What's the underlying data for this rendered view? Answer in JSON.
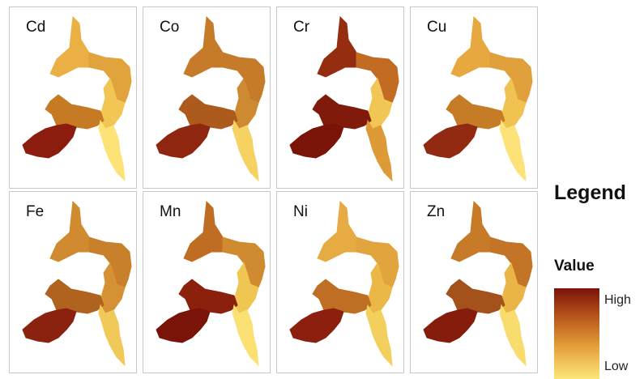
{
  "panels": [
    {
      "label": "Cd",
      "zones": {
        "northArm": "#eab046",
        "midUpper": "#e1a33c",
        "eastArm": "#f2c655",
        "westArm": "#c77a24",
        "southWest": "#8c1d0e",
        "southArm": "#fde377"
      }
    },
    {
      "label": "Co",
      "zones": {
        "northArm": "#c57b29",
        "midUpper": "#c57b29",
        "eastArm": "#cd8a30",
        "westArm": "#ad5a1d",
        "southWest": "#8f2610",
        "southArm": "#f6d263"
      }
    },
    {
      "label": "Cr",
      "zones": {
        "northArm": "#952d10",
        "midUpper": "#c26b23",
        "eastArm": "#f2c655",
        "westArm": "#801a0b",
        "southWest": "#7a1308",
        "southArm": "#dd9a36"
      }
    },
    {
      "label": "Cu",
      "zones": {
        "northArm": "#e6a83f",
        "midUpper": "#e0a03b",
        "eastArm": "#f0c251",
        "westArm": "#c67b27",
        "southWest": "#922911",
        "southArm": "#fde27a"
      }
    },
    {
      "label": "Fe",
      "zones": {
        "northArm": "#d08a2f",
        "midUpper": "#c8802b",
        "eastArm": "#d59133",
        "westArm": "#b0631f",
        "southWest": "#8a220f",
        "southArm": "#f1c959"
      }
    },
    {
      "label": "Mn",
      "zones": {
        "northArm": "#c06d24",
        "midUpper": "#d08a2f",
        "eastArm": "#f0c653",
        "westArm": "#8b200d",
        "southWest": "#7a1308",
        "southArm": "#fbe173"
      }
    },
    {
      "label": "Ni",
      "zones": {
        "northArm": "#e6ab42",
        "midUpper": "#e2a53e",
        "eastArm": "#eab748",
        "westArm": "#be6f24",
        "southWest": "#8c1f0e",
        "southArm": "#f3cf5e"
      }
    },
    {
      "label": "Zn",
      "zones": {
        "northArm": "#c77a27",
        "midUpper": "#c47427",
        "eastArm": "#eab546",
        "westArm": "#a4511b",
        "southWest": "#851c0c",
        "southArm": "#f8dc6e"
      }
    }
  ],
  "legend": {
    "title": "Legend",
    "subtitle": "Value",
    "high": "High",
    "low": "Low",
    "ramp_colors": [
      "#7a1308",
      "#b5531c",
      "#e29a35",
      "#fde77a"
    ]
  }
}
